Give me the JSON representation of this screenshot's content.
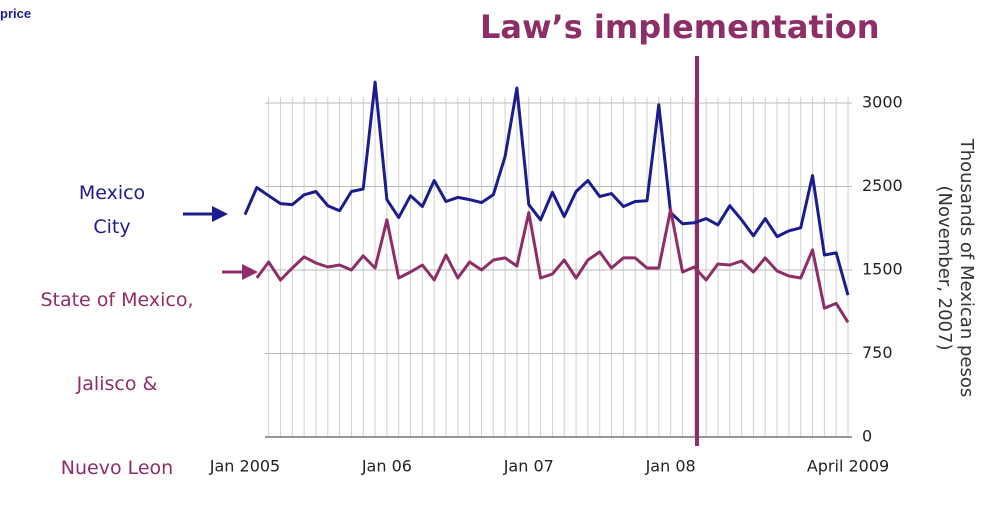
{
  "header": "price",
  "chart_data": {
    "type": "line",
    "title": "Law’s implementation",
    "ylabel": "Thousands of Mexican pesos\n(November, 2007)",
    "categories": [
      "Jan 2005",
      null,
      null,
      null,
      null,
      null,
      null,
      null,
      null,
      null,
      null,
      null,
      "Jan 06",
      null,
      null,
      null,
      null,
      null,
      null,
      null,
      null,
      null,
      null,
      null,
      "Jan 07",
      null,
      null,
      null,
      null,
      null,
      null,
      null,
      null,
      null,
      null,
      null,
      "Jan 08",
      null,
      null,
      null,
      null,
      null,
      null,
      null,
      null,
      null,
      null,
      null,
      null,
      null,
      null,
      "April 2009"
    ],
    "series": [
      {
        "name": "Mexico\nCity",
        "color": "#1c1c8e",
        "values": [
          2163,
          2488,
          2390,
          2295,
          2283,
          2400,
          2440,
          2270,
          2210,
          2440,
          2470,
          3125,
          2343,
          2127,
          2390,
          2260,
          2536,
          2320,
          2370,
          2343,
          2307,
          2400,
          2680,
          3090,
          2283,
          2100,
          2430,
          2140,
          2440,
          2536,
          2380,
          2415,
          2260,
          2320,
          2330,
          2990,
          2187,
          2055,
          2065,
          2115,
          2040,
          2270,
          2100,
          1910,
          2115,
          1900,
          1970,
          2005,
          2565,
          1680,
          1705,
          1274
        ]
      },
      {
        "name": "State of Mexico,\nJalisco &\nNuevo Leon",
        "color": "#8e2e66",
        "values": [
          null,
          1428,
          1596,
          1410,
          1524,
          1657,
          1584,
          1536,
          1560,
          1500,
          1669,
          1524,
          2100,
          1428,
          1482,
          1560,
          1410,
          1680,
          1428,
          1596,
          1500,
          1620,
          1645,
          1548,
          2187,
          1428,
          1464,
          1620,
          1428,
          1620,
          1717,
          1524,
          1645,
          1645,
          1524,
          1524,
          2223,
          1482,
          1536,
          1410,
          1572,
          1560,
          1608,
          1482,
          1645,
          1491,
          1446,
          1428,
          1741,
          1157,
          1200,
          1030
        ]
      }
    ],
    "ylim": [
      0,
      3000
    ],
    "yticks": [
      0,
      750,
      1500,
      2500,
      3000
    ],
    "grid": true
  }
}
